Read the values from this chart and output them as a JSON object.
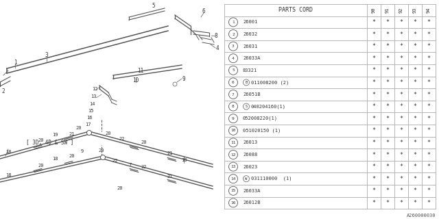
{
  "part_code_label": "PARTS CORD",
  "columns": [
    "9\n0",
    "9\n1",
    "9\n2",
    "9\n3",
    "9\n4"
  ],
  "rows": [
    {
      "num": "1",
      "code": "26001",
      "prefix": "",
      "stars": [
        "*",
        "*",
        "*",
        "*",
        "*"
      ]
    },
    {
      "num": "2",
      "code": "26032",
      "prefix": "",
      "stars": [
        "*",
        "*",
        "*",
        "*",
        "*"
      ]
    },
    {
      "num": "3",
      "code": "26031",
      "prefix": "",
      "stars": [
        "*",
        "*",
        "*",
        "*",
        "*"
      ]
    },
    {
      "num": "4",
      "code": "26033A",
      "prefix": "",
      "stars": [
        "*",
        "*",
        "*",
        "*",
        "*"
      ]
    },
    {
      "num": "5",
      "code": "83321",
      "prefix": "",
      "stars": [
        "*",
        "*",
        "*",
        "*",
        "*"
      ]
    },
    {
      "num": "6",
      "code": "011008200 (2)",
      "prefix": "B",
      "stars": [
        "*",
        "*",
        "*",
        "*",
        "*"
      ]
    },
    {
      "num": "7",
      "code": "26051B",
      "prefix": "",
      "stars": [
        "*",
        "*",
        "*",
        "*",
        "*"
      ]
    },
    {
      "num": "8",
      "code": "040204160(1)",
      "prefix": "S",
      "stars": [
        "*",
        "*",
        "*",
        "*",
        "*"
      ]
    },
    {
      "num": "9",
      "code": "052008220(1)",
      "prefix": "",
      "stars": [
        "*",
        "*",
        "*",
        "*",
        "*"
      ]
    },
    {
      "num": "10",
      "code": "051020150 (1)",
      "prefix": "",
      "stars": [
        "*",
        "*",
        "*",
        "*",
        "*"
      ]
    },
    {
      "num": "11",
      "code": "26013",
      "prefix": "",
      "stars": [
        "*",
        "*",
        "*",
        "*",
        "*"
      ]
    },
    {
      "num": "12",
      "code": "26088",
      "prefix": "",
      "stars": [
        "*",
        "*",
        "*",
        "*",
        "*"
      ]
    },
    {
      "num": "13",
      "code": "26023",
      "prefix": "",
      "stars": [
        "*",
        "*",
        "*",
        "*",
        "*"
      ]
    },
    {
      "num": "14",
      "code": "031110000  (1)",
      "prefix": "W",
      "stars": [
        "*",
        "*",
        "*",
        "*",
        "*"
      ]
    },
    {
      "num": "15",
      "code": "26033A",
      "prefix": "",
      "stars": [
        "*",
        "*",
        "*",
        "*",
        "*"
      ]
    },
    {
      "num": "16",
      "code": "26012B",
      "prefix": "",
      "stars": [
        "*",
        "*",
        "*",
        "*",
        "*"
      ]
    }
  ],
  "bg_color": "#ffffff",
  "text_color": "#333333",
  "line_color": "#555555",
  "footer": "A260000030",
  "diagram_label": "[ 3D, 4D & SW ]"
}
